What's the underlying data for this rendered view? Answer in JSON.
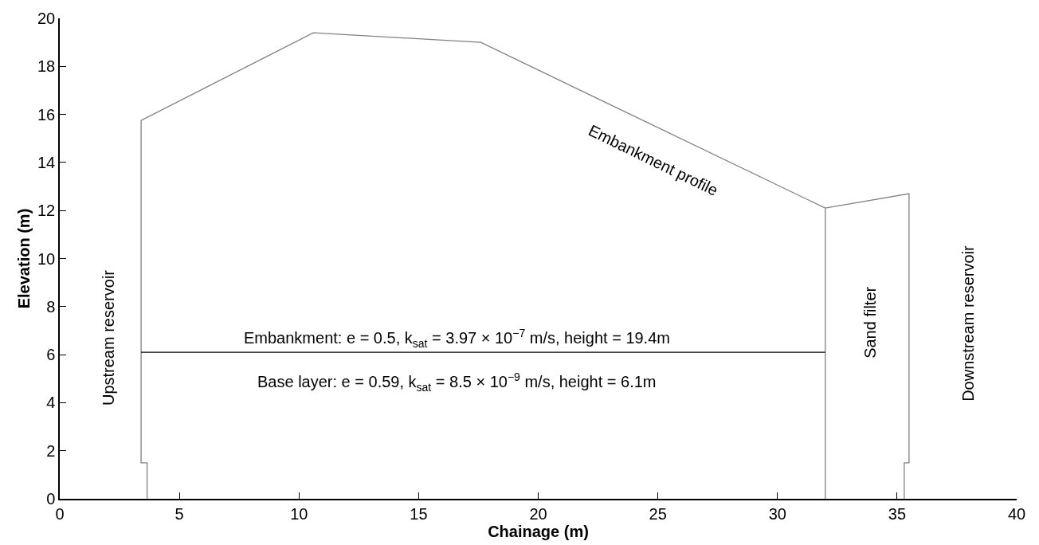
{
  "chart_data": {
    "type": "line",
    "xlabel": "Chainage (m)",
    "ylabel": "Elevation (m)",
    "xlim": [
      0,
      40
    ],
    "ylim": [
      0,
      20
    ],
    "xticks": [
      0,
      5,
      10,
      15,
      20,
      25,
      30,
      35,
      40
    ],
    "yticks": [
      0,
      2,
      4,
      6,
      8,
      10,
      12,
      14,
      16,
      18,
      20
    ],
    "legend": false,
    "marker": "none",
    "line_style": "solid",
    "series": [
      {
        "color": "#808080",
        "x": [
          3.65,
          3.65,
          3.4,
          3.4,
          10.6,
          17.6,
          32.0,
          35.5,
          35.5,
          35.3,
          35.3
        ],
        "values": [
          0,
          1.5,
          1.5,
          15.75,
          19.4,
          19.0,
          12.1,
          12.7,
          1.5,
          1.5,
          0
        ]
      },
      {
        "color": "#808080",
        "x": [
          32.0,
          32.0
        ],
        "values": [
          12.1,
          0
        ]
      },
      {
        "color": "#000000",
        "x": [
          3.4,
          32.0
        ],
        "values": [
          6.1,
          6.1
        ]
      }
    ],
    "annotations": [
      "Embankment profile",
      "Embankment: e = 0.5, k$_{sat}$ = 3.97 × 10$^{−7}$ m/s, height = 19.4m",
      "Base layer: e = 0.59, k$_{sat}$ = 8.5 × 10$^{−9}$ m/s, height = 6.1m",
      "Upstream reservoir",
      "Sand filter",
      "Downstream reservoir"
    ]
  }
}
